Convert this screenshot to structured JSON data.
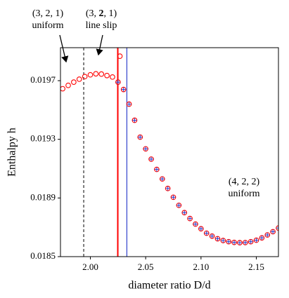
{
  "chart_data": {
    "type": "scatter",
    "xlabel": "diameter ratio D/d",
    "ylabel": "Enthalpy h",
    "xlim": [
      1.973,
      2.17
    ],
    "ylim": [
      0.0185,
      0.019925
    ],
    "xticks": [
      {
        "value": 2.0,
        "label": "2.00"
      },
      {
        "value": 2.05,
        "label": "2.05"
      },
      {
        "value": 2.1,
        "label": "2.10"
      },
      {
        "value": 2.15,
        "label": "2.15"
      }
    ],
    "yticks": [
      0.0185,
      0.0189,
      0.0193,
      0.0197
    ],
    "series": [
      {
        "name": "circles",
        "marker": "circle",
        "color": "#ff0000",
        "x": [
          1.975,
          1.98,
          1.985,
          1.99,
          1.995,
          2.0,
          2.005,
          2.01,
          2.015,
          2.02,
          2.025,
          2.0267,
          2.03,
          2.035,
          2.04,
          2.045,
          2.05,
          2.055,
          2.06,
          2.065,
          2.07,
          2.075,
          2.08,
          2.085,
          2.09,
          2.095,
          2.1,
          2.105,
          2.11,
          2.115,
          2.12,
          2.125,
          2.13,
          2.135,
          2.14,
          2.145,
          2.15,
          2.155,
          2.16,
          2.165,
          2.17
        ],
        "values": [
          0.019645,
          0.019668,
          0.01969,
          0.01971,
          0.019728,
          0.01974,
          0.019747,
          0.019745,
          0.019735,
          0.019725,
          0.01969,
          0.019867,
          0.01964,
          0.01954,
          0.01943,
          0.019315,
          0.019235,
          0.019165,
          0.019095,
          0.01903,
          0.018965,
          0.018905,
          0.01885,
          0.0188,
          0.01876,
          0.018722,
          0.01869,
          0.01866,
          0.01864,
          0.018622,
          0.01861,
          0.018602,
          0.018597,
          0.018595,
          0.018596,
          0.018602,
          0.018612,
          0.018628,
          0.018648,
          0.01867,
          0.018695
        ]
      },
      {
        "name": "pluses",
        "marker": "plus",
        "color": "#3344cc",
        "x": [
          2.025,
          2.03,
          2.035,
          2.04,
          2.045,
          2.05,
          2.055,
          2.06,
          2.065,
          2.07,
          2.075,
          2.08,
          2.085,
          2.09,
          2.095,
          2.1,
          2.105,
          2.11,
          2.115,
          2.12,
          2.125,
          2.13,
          2.135,
          2.14,
          2.145,
          2.15,
          2.155,
          2.16,
          2.165,
          2.17
        ],
        "values": [
          0.01969,
          0.01964,
          0.01954,
          0.01943,
          0.019315,
          0.019235,
          0.019165,
          0.019095,
          0.01903,
          0.018965,
          0.018905,
          0.01885,
          0.0188,
          0.01876,
          0.018722,
          0.01869,
          0.01866,
          0.01864,
          0.018622,
          0.01861,
          0.018602,
          0.018597,
          0.018595,
          0.018596,
          0.018602,
          0.018612,
          0.018628,
          0.018648,
          0.01867,
          0.018695
        ]
      }
    ],
    "vlines": [
      {
        "value": 1.994,
        "color": "#000000",
        "dashed": true
      },
      {
        "value": 2.0248,
        "color": "#ff0000",
        "dashed": false
      },
      {
        "value": 2.033,
        "color": "#3344cc",
        "dashed": false
      }
    ],
    "annotations": [
      {
        "parts": [
          "(3, 2, 1)"
        ],
        "bold_part": null,
        "text": "uniform"
      },
      {
        "parts": [
          "(3, ",
          "2",
          ", 1)"
        ],
        "bold_part": 1,
        "text": "line slip"
      },
      {
        "parts": [
          "(4, 2, 2)"
        ],
        "bold_part": null,
        "text": "uniform"
      }
    ]
  }
}
